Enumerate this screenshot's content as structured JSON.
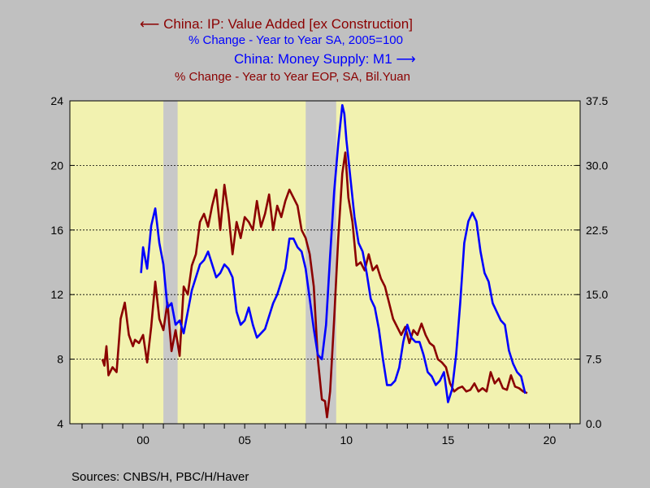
{
  "chart_data": {
    "type": "line",
    "legend": {
      "series1_title": "China: IP: Value Added [ex Construction]",
      "series1_sub": "% Change - Year to Year    SA, 2005=100",
      "series2_title": "China: Money Supply: M1",
      "series2_sub": "% Change - Year to Year    EOP, SA, Bil.Yuan"
    },
    "source": "Sources:  CNBS/H, PBC/H/Haver",
    "x_tick_labels": [
      "00",
      "05",
      "10",
      "15",
      "20"
    ],
    "x_tick_years": [
      2000,
      2005,
      2010,
      2015,
      2020
    ],
    "xlim": [
      1996.4,
      2021.5
    ],
    "left_axis": {
      "ylim": [
        4,
        24
      ],
      "ticks": [
        "4",
        "8",
        "12",
        "16",
        "20",
        "24"
      ]
    },
    "right_axis": {
      "ylim": [
        0,
        37.5
      ],
      "ticks": [
        "0.0",
        "7.5",
        "15.0",
        "22.5",
        "30.0",
        "37.5"
      ]
    },
    "grid": "horizontal dashed",
    "recessions": [
      [
        2001.0,
        2001.7
      ],
      [
        2008.0,
        2009.5
      ]
    ],
    "colors": {
      "ip": "#8b0000",
      "m1": "#0000ff",
      "plot_bg": "#f2f2b0",
      "outer_bg": "#c0c0c0",
      "recession": "#c8c8c8"
    },
    "series": [
      {
        "name": "China: IP: Value Added [ex Construction]",
        "axis": "left",
        "color": "#8b0000",
        "x": [
          1998.0,
          1998.1,
          1998.2,
          1998.3,
          1998.5,
          1998.7,
          1998.9,
          1999.1,
          1999.3,
          1999.5,
          1999.6,
          1999.8,
          2000.0,
          2000.2,
          2000.4,
          2000.6,
          2000.8,
          2001.0,
          2001.2,
          2001.4,
          2001.6,
          2001.8,
          2002.0,
          2002.2,
          2002.4,
          2002.6,
          2002.8,
          2003.0,
          2003.2,
          2003.4,
          2003.6,
          2003.8,
          2004.0,
          2004.2,
          2004.4,
          2004.6,
          2004.8,
          2005.0,
          2005.2,
          2005.4,
          2005.6,
          2005.8,
          2006.0,
          2006.2,
          2006.4,
          2006.6,
          2006.8,
          2007.0,
          2007.2,
          2007.4,
          2007.6,
          2007.8,
          2008.0,
          2008.2,
          2008.4,
          2008.6,
          2008.8,
          2008.95,
          2009.05,
          2009.2,
          2009.4,
          2009.6,
          2009.8,
          2009.95,
          2010.1,
          2010.3,
          2010.5,
          2010.7,
          2010.9,
          2011.1,
          2011.3,
          2011.5,
          2011.7,
          2011.9,
          2012.1,
          2012.3,
          2012.5,
          2012.7,
          2012.9,
          2013.1,
          2013.3,
          2013.5,
          2013.7,
          2013.9,
          2014.1,
          2014.3,
          2014.5,
          2014.7,
          2014.9,
          2015.1,
          2015.3,
          2015.5,
          2015.7,
          2015.9,
          2016.1,
          2016.3,
          2016.5,
          2016.7,
          2016.9,
          2017.1,
          2017.3,
          2017.5,
          2017.7,
          2017.9,
          2018.1,
          2018.3,
          2018.5,
          2018.7,
          2018.9
        ],
        "values": [
          8.0,
          7.6,
          8.8,
          7.0,
          7.5,
          7.2,
          10.5,
          11.5,
          9.5,
          8.8,
          9.2,
          9.0,
          9.5,
          7.8,
          10.0,
          12.8,
          10.5,
          9.8,
          11.5,
          8.5,
          9.8,
          8.2,
          12.5,
          12.0,
          13.8,
          14.5,
          16.5,
          17.0,
          16.2,
          17.5,
          18.5,
          16.0,
          18.8,
          17.0,
          14.5,
          16.5,
          15.5,
          16.8,
          16.5,
          16.0,
          17.8,
          16.2,
          17.0,
          18.2,
          16.0,
          17.5,
          16.8,
          17.8,
          18.5,
          18.0,
          17.5,
          16.0,
          15.5,
          14.5,
          12.5,
          8.0,
          5.5,
          5.4,
          4.4,
          6.0,
          10.5,
          15.5,
          19.5,
          20.8,
          18.0,
          16.5,
          13.8,
          14.0,
          13.5,
          14.5,
          13.5,
          13.8,
          13.0,
          12.5,
          11.5,
          10.5,
          10.0,
          9.5,
          10.0,
          9.0,
          9.8,
          9.5,
          10.2,
          9.5,
          9.0,
          8.8,
          8.0,
          7.8,
          7.5,
          6.5,
          6.0,
          6.2,
          6.3,
          6.0,
          6.1,
          6.5,
          6.0,
          6.2,
          6.0,
          7.2,
          6.5,
          6.8,
          6.2,
          6.1,
          7.0,
          6.3,
          6.2,
          6.0,
          5.9
        ]
      },
      {
        "name": "China: Money Supply: M1",
        "axis": "right",
        "color": "#0000ff",
        "x": [
          1999.9,
          2000.0,
          2000.2,
          2000.4,
          2000.6,
          2000.8,
          2001.0,
          2001.2,
          2001.4,
          2001.6,
          2001.8,
          2002.0,
          2002.2,
          2002.4,
          2002.6,
          2002.8,
          2003.0,
          2003.2,
          2003.4,
          2003.6,
          2003.8,
          2004.0,
          2004.2,
          2004.4,
          2004.6,
          2004.8,
          2005.0,
          2005.2,
          2005.4,
          2005.6,
          2005.8,
          2006.0,
          2006.2,
          2006.4,
          2006.6,
          2006.8,
          2007.0,
          2007.2,
          2007.4,
          2007.6,
          2007.8,
          2008.0,
          2008.2,
          2008.4,
          2008.6,
          2008.8,
          2009.0,
          2009.2,
          2009.4,
          2009.6,
          2009.8,
          2009.9,
          2010.0,
          2010.2,
          2010.4,
          2010.6,
          2010.8,
          2011.0,
          2011.2,
          2011.4,
          2011.6,
          2011.8,
          2012.0,
          2012.2,
          2012.4,
          2012.6,
          2012.8,
          2013.0,
          2013.2,
          2013.4,
          2013.6,
          2013.8,
          2014.0,
          2014.2,
          2014.4,
          2014.6,
          2014.8,
          2015.0,
          2015.2,
          2015.4,
          2015.6,
          2015.8,
          2016.0,
          2016.2,
          2016.4,
          2016.6,
          2016.8,
          2017.0,
          2017.2,
          2017.4,
          2017.6,
          2017.8,
          2018.0,
          2018.2,
          2018.4,
          2018.6,
          2018.8
        ],
        "values": [
          17.5,
          20.5,
          18.0,
          23.0,
          25.0,
          21.0,
          18.5,
          13.5,
          14.0,
          11.5,
          12.0,
          10.5,
          13.0,
          15.5,
          17.0,
          18.5,
          19.0,
          20.0,
          18.5,
          17.0,
          17.5,
          18.5,
          18.0,
          17.0,
          13.0,
          11.5,
          12.0,
          13.5,
          11.5,
          10.0,
          10.5,
          11.0,
          12.5,
          14.0,
          15.0,
          16.5,
          18.0,
          21.5,
          21.5,
          20.5,
          20.0,
          18.0,
          14.5,
          11.0,
          8.0,
          7.5,
          11.5,
          19.5,
          27.0,
          32.5,
          37.0,
          36.0,
          33.0,
          28.5,
          24.0,
          21.0,
          20.0,
          17.5,
          14.5,
          13.5,
          11.0,
          7.5,
          4.5,
          4.5,
          5.0,
          6.5,
          9.5,
          11.5,
          10.0,
          9.5,
          9.5,
          8.0,
          6.0,
          5.5,
          4.5,
          5.0,
          6.0,
          2.5,
          4.0,
          8.0,
          14.0,
          21.0,
          23.5,
          24.5,
          23.5,
          20.0,
          17.5,
          16.5,
          14.0,
          13.0,
          12.0,
          11.5,
          8.5,
          7.0,
          6.0,
          5.5,
          3.5
        ]
      }
    ]
  }
}
